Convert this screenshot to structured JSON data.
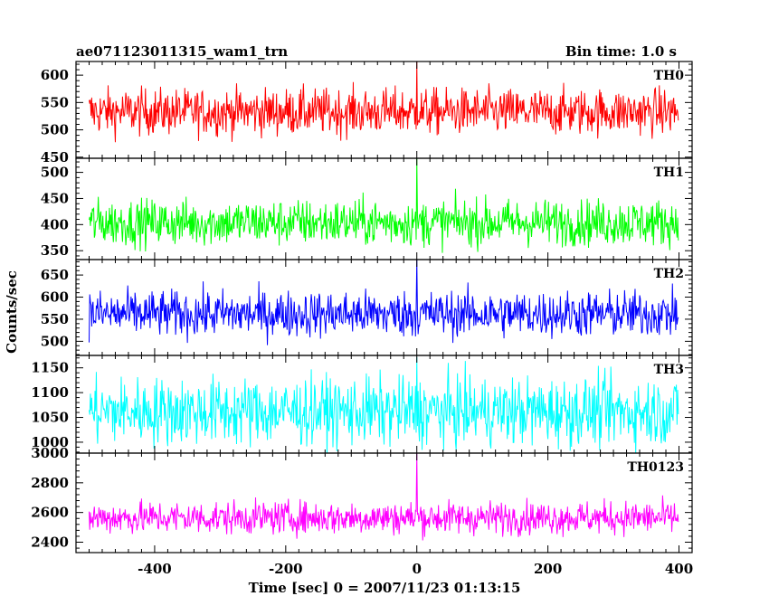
{
  "header": {
    "title": "ae071123011315_wam1_trn",
    "bin_time": "Bin time: 1.0 s"
  },
  "chart_data": {
    "type": "line",
    "xlabel": "Time [sec] 0 = 2007/11/23 01:13:15",
    "ylabel": "Counts/sec",
    "xlim": [
      -520,
      420
    ],
    "x_ticks": [
      -400,
      -200,
      0,
      200,
      400
    ],
    "x_range": [
      -500,
      399
    ],
    "bin_time_s": 1.0,
    "panels": [
      {
        "name": "TH0",
        "color": "#ff0000",
        "ylim": [
          448,
          625
        ],
        "y_ticks": [
          450,
          500,
          550,
          600
        ],
        "mean": 533,
        "spread": 21,
        "spike": {
          "x": 0,
          "value": 625
        }
      },
      {
        "name": "TH1",
        "color": "#00ff00",
        "ylim": [
          333,
          527
        ],
        "y_ticks": [
          350,
          400,
          450,
          500
        ],
        "mean": 404,
        "spread": 22,
        "spike": {
          "x": 0,
          "value": 527
        }
      },
      {
        "name": "TH2",
        "color": "#0000ff",
        "ylim": [
          468,
          685
        ],
        "y_ticks": [
          500,
          550,
          600,
          650
        ],
        "mean": 562,
        "spread": 26,
        "spike": {
          "x": 0,
          "value": 685
        }
      },
      {
        "name": "TH3",
        "color": "#00ffff",
        "ylim": [
          978,
          1175
        ],
        "y_ticks": [
          1000,
          1050,
          1100,
          1150
        ],
        "mean": 1062,
        "spread": 34,
        "spike": {
          "x": 0,
          "value": 1172
        }
      },
      {
        "name": "TH0123",
        "color": "#ff00ff",
        "ylim": [
          2330,
          3000
        ],
        "y_ticks": [
          2400,
          2600,
          2800,
          3000
        ],
        "mean": 2565,
        "spread": 55,
        "spike": {
          "x": 0,
          "value": 3000
        }
      }
    ]
  }
}
